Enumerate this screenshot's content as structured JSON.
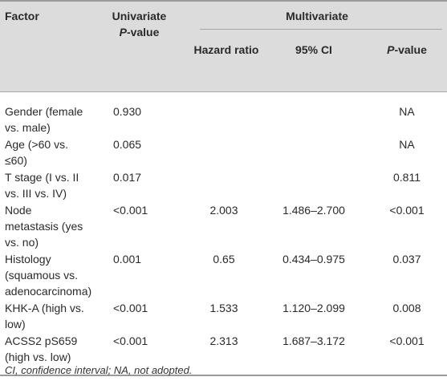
{
  "headers": {
    "factor": "Factor",
    "univariate_line1": "Univariate",
    "p_letter": "P",
    "p_suffix": "-value",
    "multivariate": "Multivariate",
    "hazard_ratio": "Hazard ratio",
    "ci": "95% CI"
  },
  "rows": [
    {
      "factor": "Gender (female vs. male)",
      "uni_p": "0.930",
      "hr": "",
      "ci": "",
      "p": "NA"
    },
    {
      "factor": "Age (>60 vs. ≤60)",
      "uni_p": "0.065",
      "hr": "",
      "ci": "",
      "p": "NA"
    },
    {
      "factor": "T stage (I vs. II vs. III vs. IV)",
      "uni_p": "0.017",
      "hr": "",
      "ci": "",
      "p": "0.811"
    },
    {
      "factor": "Node metastasis (yes vs. no)",
      "uni_p": "<0.001",
      "hr": "2.003",
      "ci": "1.486–2.700",
      "p": "<0.001"
    },
    {
      "factor": "Histology (squamous vs. adenocarcinoma)",
      "uni_p": "0.001",
      "hr": "0.65",
      "ci": "0.434–0.975",
      "p": "0.037"
    },
    {
      "factor": "KHK-A (high vs. low)",
      "uni_p": "<0.001",
      "hr": "1.533",
      "ci": "1.120–2.099",
      "p": "0.008"
    },
    {
      "factor": "ACSS2 pS659 (high vs. low)",
      "uni_p": "<0.001",
      "hr": "2.313",
      "ci": "1.687–3.172",
      "p": "<0.001"
    }
  ],
  "footnote": "CI, confidence interval; NA, not adopted."
}
